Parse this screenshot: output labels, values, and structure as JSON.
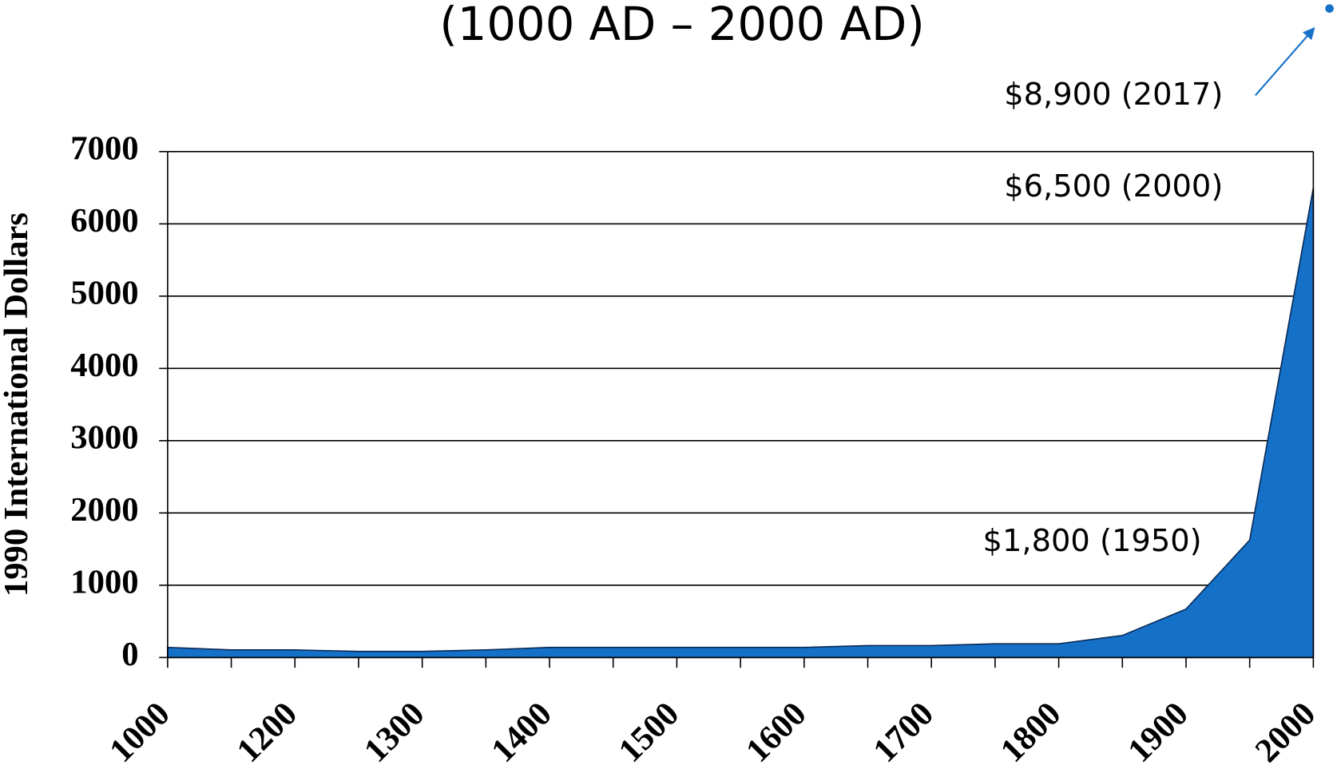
{
  "chart_data": {
    "type": "area",
    "title": "(1000 AD – 2000 AD)",
    "y_label": "1990 International Dollars",
    "annotations": [
      "$8,900  (2017)",
      "$6,500  (2000)",
      "$1,800  (1950)"
    ],
    "categories": [
      "1000",
      null,
      "1200",
      null,
      "1300",
      null,
      "1400",
      null,
      "1500",
      null,
      "1600",
      null,
      "1700",
      null,
      "1800",
      null,
      "1900",
      null,
      "2000"
    ],
    "values": [
      140,
      105,
      105,
      85,
      85,
      105,
      140,
      140,
      140,
      140,
      140,
      165,
      165,
      190,
      190,
      305,
      670,
      1625,
      6500
    ],
    "color": "#1570c8",
    "ylim": [
      0,
      7000
    ],
    "yticks": [
      0,
      1000,
      2000,
      3000,
      4000,
      5000,
      6000,
      7000
    ],
    "grid": true
  }
}
